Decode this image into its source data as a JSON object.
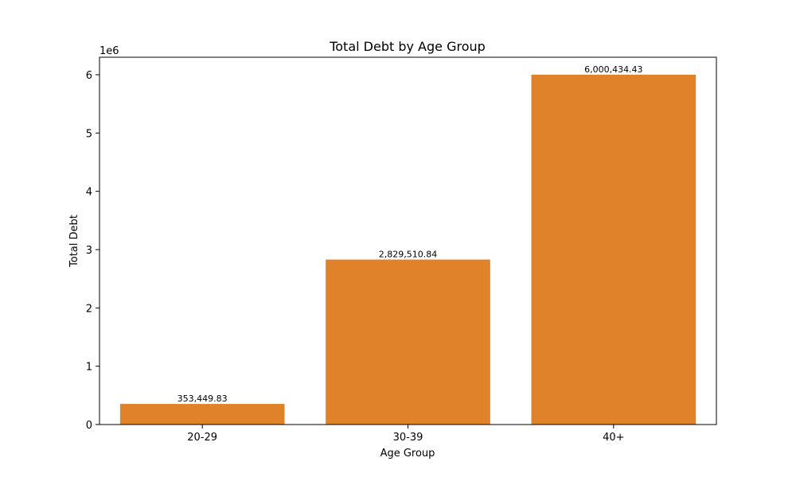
{
  "chart_data": {
    "type": "bar",
    "title": "Total Debt by Age Group",
    "xlabel": "Age Group",
    "ylabel": "Total Debt",
    "y_offset_label": "1e6",
    "categories": [
      "20-29",
      "30-39",
      "40+"
    ],
    "values": [
      353449.83,
      2829510.84,
      6000434.43
    ],
    "value_labels": [
      "353,449.83",
      "2,829,510.84",
      "6,000,434.43"
    ],
    "ylim": [
      0,
      6300000
    ],
    "yticks": [
      0,
      1000000,
      2000000,
      3000000,
      4000000,
      5000000,
      6000000
    ],
    "ytick_labels": [
      "0",
      "1",
      "2",
      "3",
      "4",
      "5",
      "6"
    ],
    "bar_color": "#e08229",
    "grid": false
  }
}
